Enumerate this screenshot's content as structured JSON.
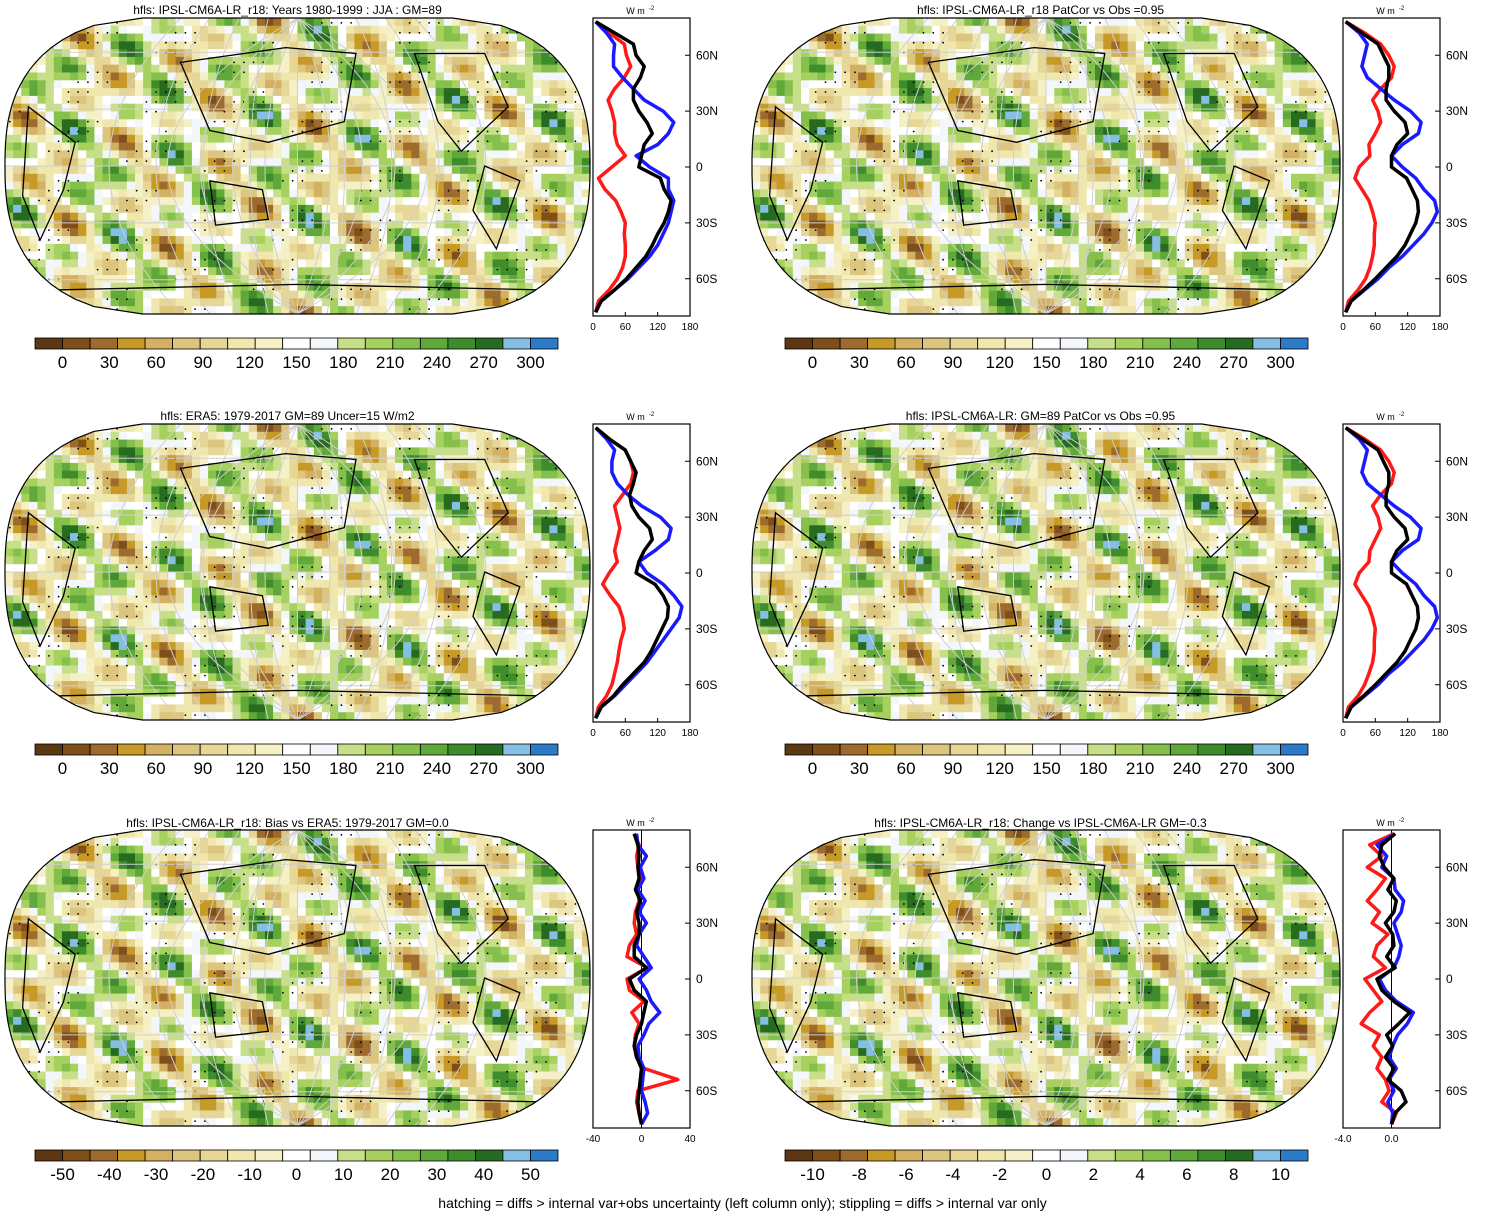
{
  "footer": "hatching = diffs > internal var+obs uncertainty (left column only); stippling = diffs > internal var only",
  "colors": {
    "abs_palette": [
      "#5c3711",
      "#7f4f1b",
      "#9d6b2d",
      "#c79a28",
      "#d3b062",
      "#dcc57f",
      "#e6d797",
      "#efe7ad",
      "#f5f0c5",
      "#ffffff",
      "#f3f6fb",
      "#c7df88",
      "#a7d15f",
      "#86c04c",
      "#61a83b",
      "#3f8c2d",
      "#276b21",
      "#85bfe3",
      "#2b7bc8"
    ],
    "diff_palette": [
      "#5c3711",
      "#7f4f1b",
      "#9d6b2d",
      "#c79a28",
      "#d3b062",
      "#dcc57f",
      "#e6d797",
      "#efe7ad",
      "#f5f0c5",
      "#ffffff",
      "#f3f6fb",
      "#c7df88",
      "#a7d15f",
      "#86c04c",
      "#61a83b",
      "#3f8c2d",
      "#276b21",
      "#85bfe3",
      "#2b7bc8"
    ],
    "line_model": "#ff1a1a",
    "line_obs": "#1a1aff",
    "line_other": "#000000"
  },
  "chart_data": [
    {
      "type": "heatmap",
      "projection": "robinson",
      "title": "hfls: IPSL-CM6A-LR_r18: Years 1980-1999 : JJA : GM=89",
      "colorbar": {
        "labels": [
          "0",
          "30",
          "60",
          "90",
          "120",
          "150",
          "180",
          "210",
          "240",
          "270",
          "300"
        ],
        "min": -15,
        "max": 315
      },
      "zonal_mean": {
        "unit": "W m",
        "unit_sup": "-2",
        "xlim": [
          0,
          180
        ],
        "xticks": [
          "0",
          "60",
          "120",
          "180"
        ],
        "ylim": [
          -80,
          80
        ],
        "yticks": [
          "60N",
          "30N",
          "0",
          "30S",
          "60S"
        ],
        "lat": [
          -78,
          -72,
          -66,
          -60,
          -54,
          -48,
          -42,
          -36,
          -30,
          -24,
          -18,
          -12,
          -6,
          0,
          6,
          12,
          18,
          24,
          30,
          36,
          42,
          48,
          54,
          60,
          66,
          72,
          78
        ],
        "series": [
          {
            "values": [
              5,
              10,
              30,
              45,
              55,
              60,
              60,
              58,
              60,
              52,
              42,
              22,
              10,
              35,
              60,
              45,
              40,
              40,
              35,
              28,
              40,
              58,
              70,
              62,
              58,
              30,
              5
            ]
          },
          {
            "values": [
              5,
              15,
              40,
              65,
              85,
              105,
              120,
              130,
              140,
              145,
              150,
              140,
              140,
              105,
              80,
              120,
              140,
              150,
              130,
              95,
              75,
              55,
              38,
              38,
              40,
              25,
              5
            ]
          },
          {
            "values": [
              5,
              15,
              40,
              62,
              80,
              98,
              110,
              120,
              132,
              140,
              145,
              132,
              125,
              85,
              90,
              95,
              110,
              100,
              85,
              75,
              75,
              88,
              95,
              80,
              75,
              40,
              5
            ]
          }
        ]
      }
    },
    {
      "type": "heatmap",
      "projection": "robinson",
      "title": "hfls: IPSL-CM6A-LR_r18 PatCor vs Obs =0.95",
      "colorbar": {
        "labels": [
          "0",
          "30",
          "60",
          "90",
          "120",
          "150",
          "180",
          "210",
          "240",
          "270",
          "300"
        ],
        "min": -15,
        "max": 315
      },
      "zonal_mean": {
        "unit": "W m",
        "unit_sup": "-2",
        "xlim": [
          0,
          180
        ],
        "xticks": [
          "0",
          "60",
          "120",
          "180"
        ],
        "ylim": [
          -80,
          80
        ],
        "yticks": [
          "60N",
          "30N",
          "0",
          "30S",
          "60S"
        ],
        "lat": [
          -78,
          -72,
          -66,
          -60,
          -54,
          -48,
          -42,
          -36,
          -30,
          -24,
          -18,
          -12,
          -6,
          0,
          6,
          12,
          18,
          24,
          30,
          36,
          42,
          48,
          54,
          60,
          66,
          72,
          78
        ],
        "series": [
          {
            "values": [
              5,
              10,
              28,
              42,
              50,
              55,
              58,
              58,
              60,
              55,
              48,
              35,
              22,
              30,
              50,
              48,
              60,
              70,
              65,
              55,
              70,
              90,
              95,
              85,
              70,
              40,
              5
            ]
          },
          {
            "values": [
              5,
              15,
              40,
              65,
              85,
              110,
              130,
              150,
              165,
              175,
              170,
              150,
              135,
              110,
              90,
              110,
              140,
              145,
              125,
              95,
              70,
              45,
              35,
              40,
              45,
              30,
              5
            ]
          },
          {
            "values": [
              5,
              15,
              38,
              60,
              80,
              100,
              115,
              125,
              135,
              140,
              138,
              128,
              118,
              90,
              90,
              100,
              120,
              115,
              95,
              80,
              80,
              85,
              85,
              75,
              65,
              35,
              5
            ]
          }
        ]
      }
    },
    {
      "type": "heatmap",
      "projection": "robinson",
      "title": "hfls: ERA5: 1979-2017 GM=89 Uncer=15 W/m2",
      "colorbar": {
        "labels": [
          "0",
          "30",
          "60",
          "90",
          "120",
          "150",
          "180",
          "210",
          "240",
          "270",
          "300"
        ],
        "min": -15,
        "max": 315
      },
      "zonal_mean": {
        "unit": "W m",
        "unit_sup": "-2",
        "xlim": [
          0,
          180
        ],
        "xticks": [
          "0",
          "60",
          "120",
          "180"
        ],
        "ylim": [
          -80,
          80
        ],
        "yticks": [
          "60N",
          "30N",
          "0",
          "30S",
          "60S"
        ],
        "lat": [
          -78,
          -72,
          -66,
          -60,
          -54,
          -48,
          -42,
          -36,
          -30,
          -24,
          -18,
          -12,
          -6,
          0,
          6,
          12,
          18,
          24,
          30,
          36,
          42,
          48,
          54,
          60,
          66,
          72,
          78
        ],
        "series": [
          {
            "values": [
              5,
              10,
              25,
              35,
              40,
              45,
              48,
              52,
              58,
              55,
              48,
              32,
              18,
              30,
              45,
              40,
              45,
              50,
              45,
              40,
              55,
              70,
              75,
              70,
              60,
              30,
              5
            ]
          },
          {
            "values": [
              5,
              15,
              40,
              60,
              80,
              100,
              115,
              130,
              145,
              160,
              165,
              150,
              130,
              100,
              85,
              115,
              140,
              145,
              125,
              90,
              65,
              45,
              35,
              35,
              40,
              25,
              5
            ]
          },
          {
            "values": [
              5,
              15,
              38,
              55,
              75,
              95,
              108,
              118,
              128,
              138,
              140,
              130,
              115,
              80,
              85,
              95,
              110,
              105,
              85,
              72,
              68,
              75,
              80,
              70,
              60,
              30,
              5
            ]
          }
        ]
      }
    },
    {
      "type": "heatmap",
      "projection": "robinson",
      "title": "hfls: IPSL-CM6A-LR: GM=89 PatCor vs Obs =0.95",
      "colorbar": {
        "labels": [
          "0",
          "30",
          "60",
          "90",
          "120",
          "150",
          "180",
          "210",
          "240",
          "270",
          "300"
        ],
        "min": -15,
        "max": 315
      },
      "zonal_mean": {
        "unit": "W m",
        "unit_sup": "-2",
        "xlim": [
          0,
          180
        ],
        "xticks": [
          "0",
          "60",
          "120",
          "180"
        ],
        "ylim": [
          -80,
          80
        ],
        "yticks": [
          "60N",
          "30N",
          "0",
          "30S",
          "60S"
        ],
        "lat": [
          -78,
          -72,
          -66,
          -60,
          -54,
          -48,
          -42,
          -36,
          -30,
          -24,
          -18,
          -12,
          -6,
          0,
          6,
          12,
          18,
          24,
          30,
          36,
          42,
          48,
          54,
          60,
          66,
          72,
          78
        ],
        "series": [
          {
            "values": [
              5,
              10,
              28,
              40,
              48,
              55,
              58,
              58,
              60,
              55,
              48,
              35,
              22,
              30,
              48,
              50,
              60,
              70,
              65,
              55,
              70,
              90,
              95,
              85,
              70,
              40,
              5
            ]
          },
          {
            "values": [
              5,
              15,
              40,
              65,
              85,
              110,
              130,
              150,
              165,
              175,
              170,
              150,
              135,
              110,
              90,
              110,
              140,
              145,
              125,
              95,
              70,
              45,
              35,
              40,
              45,
              30,
              5
            ]
          },
          {
            "values": [
              5,
              15,
              38,
              60,
              80,
              100,
              115,
              125,
              135,
              140,
              138,
              128,
              118,
              90,
              90,
              100,
              120,
              115,
              95,
              80,
              80,
              85,
              85,
              75,
              65,
              35,
              5
            ]
          }
        ]
      }
    },
    {
      "type": "heatmap",
      "projection": "robinson",
      "title": "hfls: IPSL-CM6A-LR_r18: Bias vs ERA5: 1979-2017 GM=0.0",
      "colorbar": {
        "labels": [
          "-50",
          "-40",
          "-30",
          "-20",
          "-10",
          "0",
          "10",
          "20",
          "30",
          "40",
          "50"
        ],
        "min": -55,
        "max": 55
      },
      "zonal_mean": {
        "unit": "W m",
        "unit_sup": "-2",
        "xlim": [
          -40,
          40
        ],
        "xticks": [
          "-40",
          "0",
          "40"
        ],
        "ylim": [
          -80,
          80
        ],
        "yticks": [
          "60N",
          "30N",
          "0",
          "30S",
          "60S"
        ],
        "lat": [
          -78,
          -72,
          -66,
          -60,
          -54,
          -48,
          -42,
          -36,
          -30,
          -24,
          -18,
          -12,
          -6,
          0,
          6,
          12,
          18,
          24,
          30,
          36,
          42,
          48,
          54,
          60,
          66,
          72,
          78
        ],
        "series": [
          {
            "values": [
              0,
              -2,
              -4,
              -3,
              30,
              2,
              -4,
              -6,
              -5,
              -2,
              -8,
              2,
              -10,
              -12,
              5,
              -12,
              -10,
              -4,
              -6,
              -5,
              -2,
              -3,
              -1,
              -3,
              -4,
              -2,
              -6
            ]
          },
          {
            "values": [
              0,
              5,
              3,
              0,
              1,
              2,
              -2,
              -3,
              2,
              6,
              15,
              8,
              4,
              -2,
              8,
              2,
              -4,
              -2,
              4,
              -2,
              3,
              -3,
              2,
              -1,
              4,
              -3,
              -4
            ]
          },
          {
            "values": [
              0,
              -2,
              -3,
              -2,
              -1,
              0,
              -4,
              -6,
              -4,
              0,
              2,
              4,
              -6,
              -10,
              4,
              -6,
              -6,
              -2,
              -2,
              -4,
              -1,
              -5,
              -2,
              -3,
              -2,
              -3,
              -6
            ]
          }
        ]
      }
    },
    {
      "type": "heatmap",
      "projection": "robinson",
      "title": "hfls: IPSL-CM6A-LR_r18: Change vs IPSL-CM6A-LR GM=-0.3",
      "colorbar": {
        "labels": [
          "-10",
          "-8",
          "-6",
          "-4",
          "-2",
          "0",
          "2",
          "4",
          "6",
          "8",
          "10"
        ],
        "min": -11,
        "max": 11
      },
      "zonal_mean": {
        "unit": "W m",
        "unit_sup": "-2",
        "xlim": [
          -4.0,
          4.0
        ],
        "xticks": [
          "-4.0",
          "0.0"
        ],
        "ylim": [
          -80,
          80
        ],
        "yticks": [
          "60N",
          "30N",
          "0",
          "30S",
          "60S"
        ],
        "lat": [
          -78,
          -72,
          -66,
          -60,
          -54,
          -48,
          -42,
          -36,
          -30,
          -24,
          -18,
          -12,
          -6,
          0,
          6,
          12,
          18,
          24,
          30,
          36,
          42,
          48,
          54,
          60,
          66,
          72,
          78
        ],
        "series": [
          {
            "values": [
              0,
              0.4,
              -0.8,
              -0.2,
              -0.5,
              -1.2,
              -0.8,
              -1.5,
              -1.0,
              -2.5,
              -1.8,
              -0.8,
              -1.5,
              -2.2,
              -0.5,
              -1.5,
              -1.2,
              -0.3,
              -1.6,
              -1.0,
              -2.0,
              -1.2,
              -0.5,
              -2.0,
              -0.8,
              -1.8,
              0.2
            ]
          },
          {
            "values": [
              0,
              0.1,
              -0.3,
              0.2,
              -0.2,
              0.4,
              -0.2,
              0.1,
              0.5,
              1.3,
              1.8,
              0.4,
              -0.5,
              -1.0,
              0.2,
              0.6,
              0.8,
              0.5,
              0.2,
              0.8,
              1.0,
              0.3,
              0.2,
              -0.8,
              -0.4,
              -1.2,
              0.3
            ]
          },
          {
            "values": [
              0,
              0.3,
              1.2,
              0.8,
              -0.3,
              0.2,
              -0.5,
              0.1,
              -0.4,
              0.6,
              1.5,
              0.2,
              -0.8,
              -1.2,
              0.3,
              -0.4,
              0.2,
              0.1,
              -0.5,
              0.2,
              0.4,
              -0.3,
              0.2,
              -0.6,
              -1.0,
              -0.8,
              0.3
            ]
          }
        ]
      }
    }
  ]
}
